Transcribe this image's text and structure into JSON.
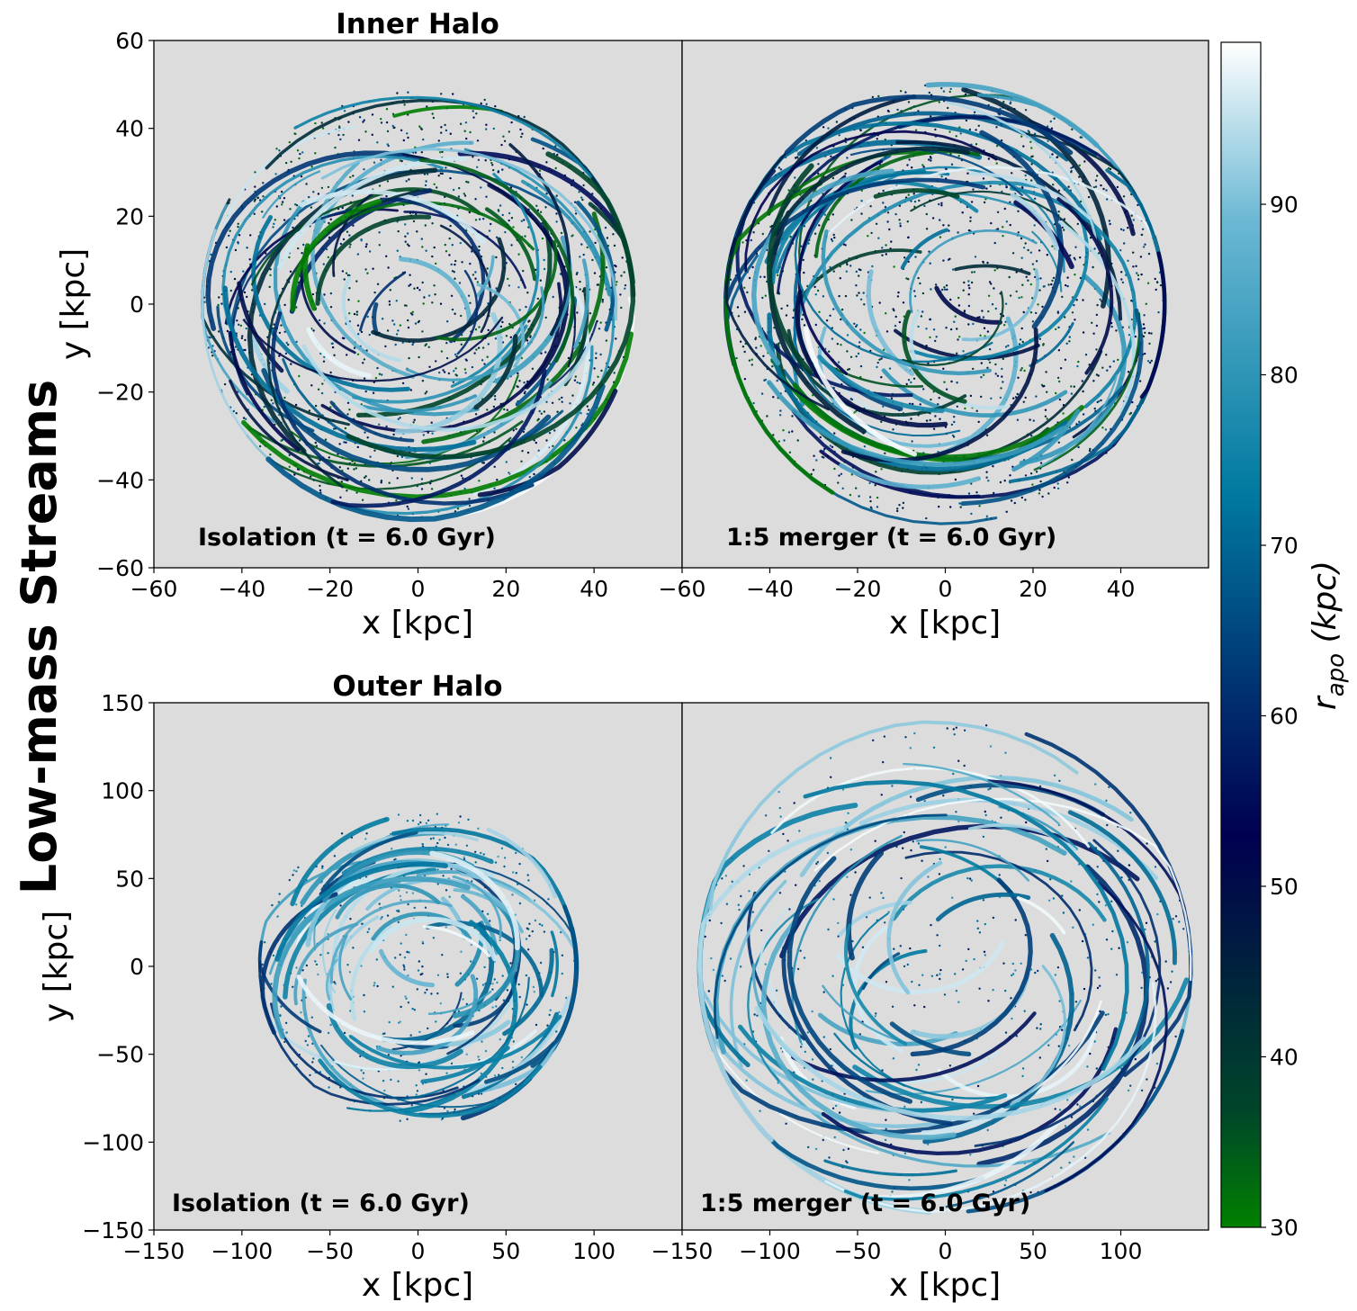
{
  "figure_title": "Low-mass Streams",
  "colors": {
    "axes_bg": "#dcdcdc",
    "cmap": [
      "#008000",
      "#00452a",
      "#000050",
      "#00306f",
      "#007aa0",
      "#6bb8d4",
      "#ffffff"
    ]
  },
  "chart_data": [
    {
      "type": "scatter",
      "title": "Inner Halo",
      "annotation": "Isolation (t = 6.0 Gyr)",
      "xlabel": "x [kpc]",
      "ylabel": "y [kpc]",
      "xlim": [
        -60,
        60
      ],
      "ylim": [
        -60,
        60
      ],
      "xticks": [
        "−60",
        "−40",
        "−20",
        "0",
        "20",
        "40"
      ],
      "yticks": [
        "−60",
        "−40",
        "−20",
        "0",
        "20",
        "40",
        "60"
      ],
      "extent_radius": 49,
      "color_range": [
        30,
        99
      ]
    },
    {
      "type": "scatter",
      "title": "",
      "annotation": "1:5 merger (t = 6.0 Gyr)",
      "xlabel": "x [kpc]",
      "ylabel": "",
      "xlim": [
        -60,
        60
      ],
      "ylim": [
        -60,
        60
      ],
      "xticks": [
        "−60",
        "−40",
        "−20",
        "0",
        "20",
        "40"
      ],
      "yticks": [],
      "extent_radius": 50,
      "color_range": [
        30,
        99
      ]
    },
    {
      "type": "scatter",
      "title": "Outer Halo",
      "annotation": "Isolation (t = 6.0 Gyr)",
      "xlabel": "x [kpc]",
      "ylabel": "y [kpc]",
      "xlim": [
        -150,
        150
      ],
      "ylim": [
        -150,
        150
      ],
      "xticks": [
        "−150",
        "−100",
        "−50",
        "0",
        "50",
        "100"
      ],
      "yticks": [
        "−150",
        "−100",
        "−50",
        "0",
        "50",
        "100",
        "150"
      ],
      "extent_radius": 90,
      "color_range": [
        60,
        99
      ]
    },
    {
      "type": "scatter",
      "title": "",
      "annotation": "1:5 merger (t = 6.0 Gyr)",
      "xlabel": "x [kpc]",
      "ylabel": "",
      "xlim": [
        -150,
        150
      ],
      "ylim": [
        -150,
        150
      ],
      "xticks": [
        "−150",
        "−100",
        "−50",
        "0",
        "50",
        "100"
      ],
      "yticks": [],
      "extent_radius": 140,
      "color_range": [
        55,
        99
      ]
    }
  ],
  "colorbar": {
    "label_main": "r",
    "label_sub": "apo",
    "label_unit": " (kpc)",
    "range": [
      30,
      99.5
    ],
    "ticks": [
      "30",
      "40",
      "50",
      "60",
      "70",
      "80",
      "90"
    ],
    "tick_values": [
      30,
      40,
      50,
      60,
      70,
      80,
      90
    ]
  }
}
